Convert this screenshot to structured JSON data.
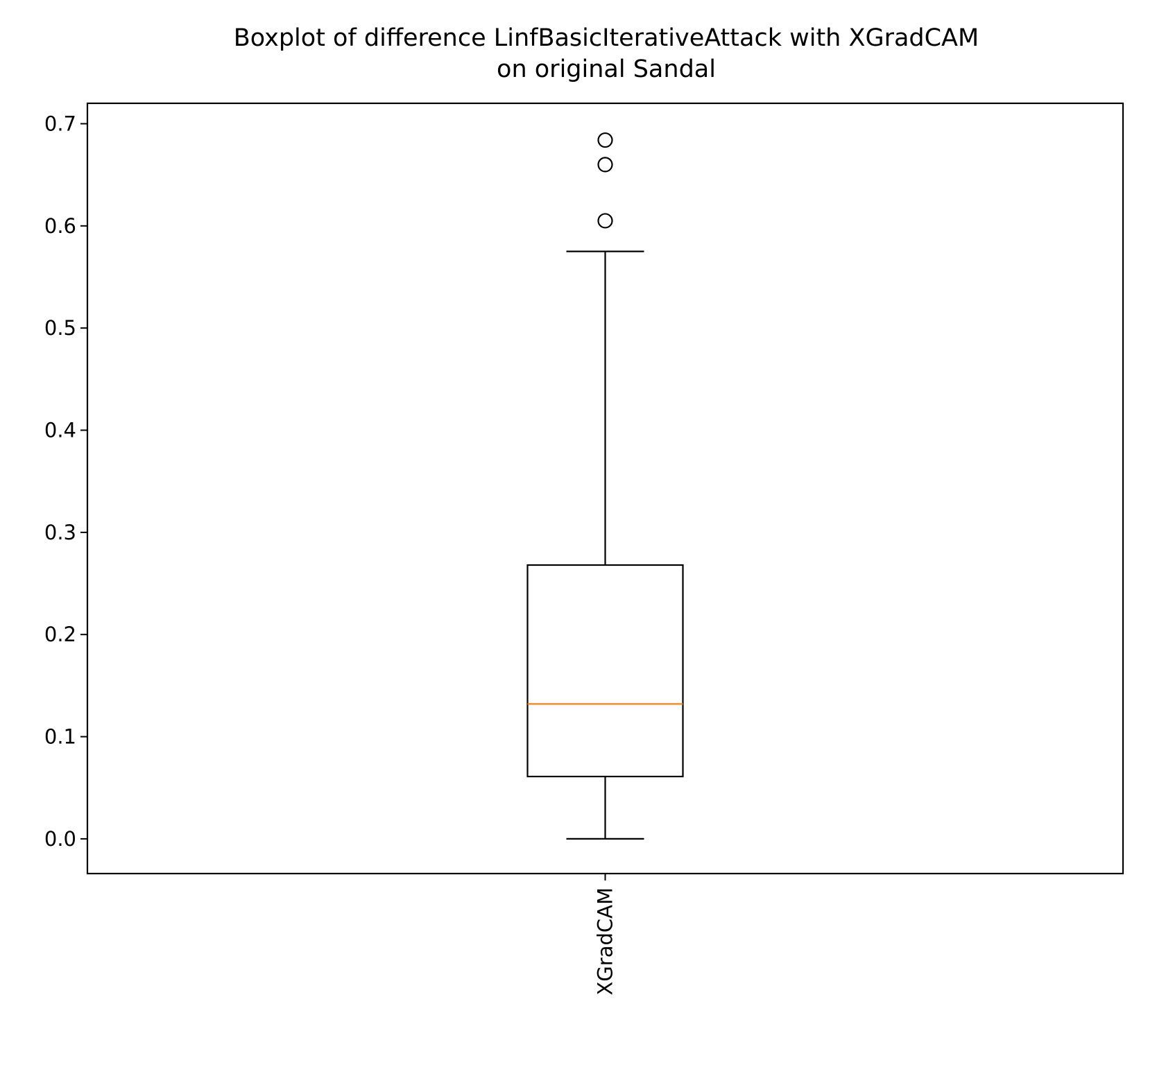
{
  "chart_data": {
    "type": "box",
    "title_line1": "Boxplot of difference LinfBasicIterativeAttack with XGradCAM",
    "title_line2": "on original Sandal",
    "xlabel": "",
    "ylabel": "",
    "ylim": [
      -0.034,
      0.72
    ],
    "yticks": [
      "0.0",
      "0.1",
      "0.2",
      "0.3",
      "0.4",
      "0.5",
      "0.6",
      "0.7"
    ],
    "categories": [
      "XGradCAM"
    ],
    "boxes": [
      {
        "name": "XGradCAM",
        "whisker_low": 0.0,
        "q1": 0.061,
        "median": 0.132,
        "q3": 0.268,
        "whisker_high": 0.575,
        "outliers": [
          0.605,
          0.66,
          0.684
        ]
      }
    ],
    "colors": {
      "box": "#000000",
      "median": "#ff7f0e",
      "outlier": "#000000"
    },
    "grid": false
  }
}
